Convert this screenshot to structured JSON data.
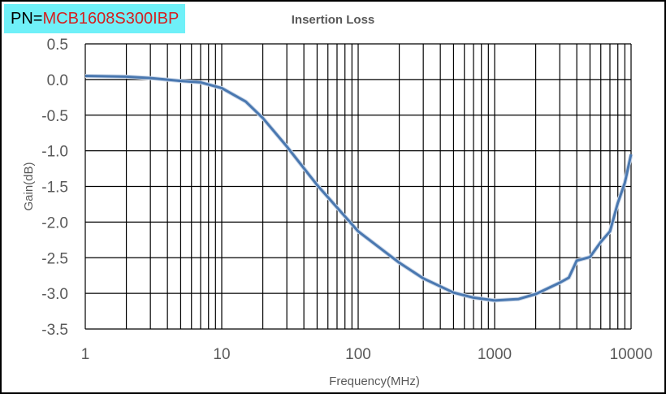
{
  "part_label": {
    "prefix": "PN=",
    "value": "MCB1608S300IBP"
  },
  "colors": {
    "label_bg": "#6ff0f8",
    "part_value": "#d42020",
    "series": "#4a78b0",
    "grid": "#000000"
  },
  "chart_data": {
    "type": "line",
    "title": "Insertion Loss",
    "xlabel": "Frequency(MHz)",
    "ylabel": "Gain(dB)",
    "xscale": "log",
    "xlim": [
      1,
      10000
    ],
    "ylim": [
      -3.5,
      0.5
    ],
    "xticks": [
      "1",
      "10",
      "100",
      "1000",
      "10000"
    ],
    "yticks": [
      "0.5",
      "0.0",
      "-0.5",
      "-1.0",
      "-1.5",
      "-2.0",
      "-2.5",
      "-3.0",
      "-3.5"
    ],
    "grid": true,
    "legend": "none",
    "series": [
      {
        "x": [
          1,
          2,
          3,
          5,
          7,
          10,
          15,
          20,
          30,
          50,
          100,
          200,
          300,
          500,
          700,
          1000,
          1500,
          2000,
          3000,
          3500,
          4000,
          5000,
          6000,
          7000,
          8000,
          9000,
          10000
        ],
        "y": [
          0.05,
          0.04,
          0.02,
          -0.02,
          -0.04,
          -0.12,
          -0.31,
          -0.54,
          -0.94,
          -1.48,
          -2.13,
          -2.57,
          -2.79,
          -2.99,
          -3.06,
          -3.1,
          -3.08,
          -3.01,
          -2.85,
          -2.78,
          -2.54,
          -2.49,
          -2.28,
          -2.13,
          -1.73,
          -1.45,
          -1.05
        ]
      }
    ]
  }
}
